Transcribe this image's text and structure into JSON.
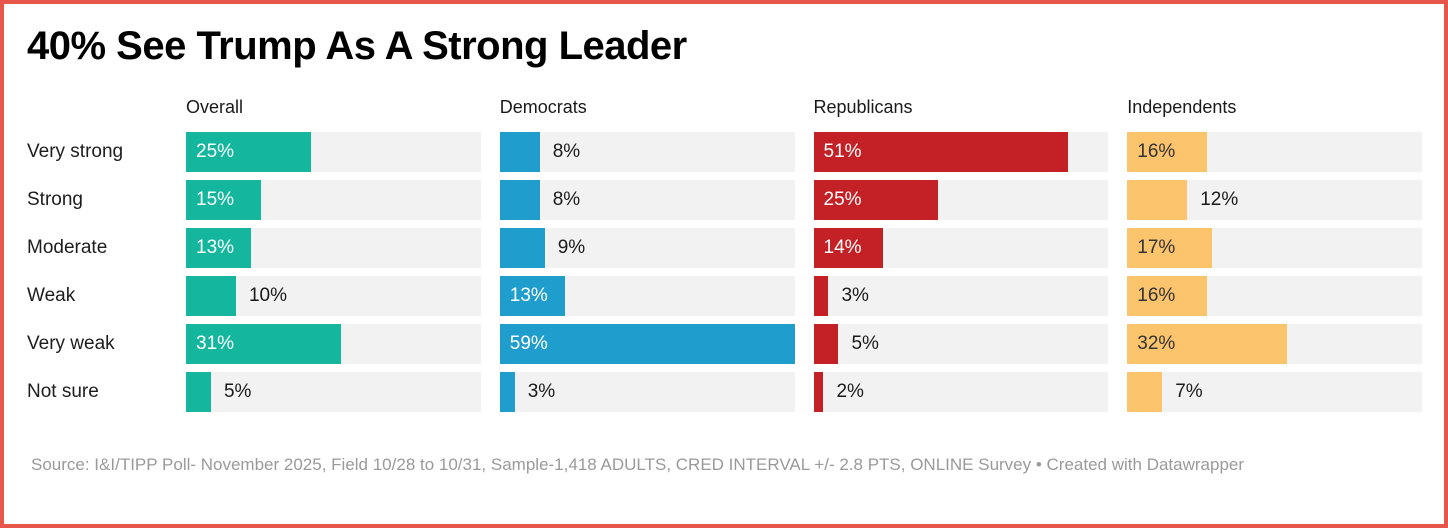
{
  "title": "40% See Trump As A Strong Leader",
  "frame": {
    "border_color": "#e7564b",
    "background": "#ffffff",
    "track_color": "#f2f2f2"
  },
  "chart_data": {
    "type": "bar",
    "orientation": "horizontal",
    "title": "40% See Trump As A Strong Leader",
    "categories": [
      "Very strong",
      "Strong",
      "Moderate",
      "Weak",
      "Very weak",
      "Not sure"
    ],
    "series": [
      {
        "name": "Overall",
        "color": "#14b79e",
        "inside_label_color": "#ffffff",
        "values": [
          25,
          15,
          13,
          10,
          31,
          5
        ]
      },
      {
        "name": "Democrats",
        "color": "#1f9ecd",
        "inside_label_color": "#ffffff",
        "values": [
          8,
          8,
          9,
          13,
          59,
          3
        ]
      },
      {
        "name": "Republicans",
        "color": "#c42127",
        "inside_label_color": "#ffffff",
        "values": [
          51,
          25,
          14,
          3,
          5,
          2
        ]
      },
      {
        "name": "Independents",
        "color": "#fbc46d",
        "inside_label_color": "#333333",
        "values": [
          16,
          12,
          17,
          16,
          32,
          7
        ]
      }
    ],
    "value_suffix": "%",
    "outside_label_color": "#1a1a1a",
    "inside_label_min_value": 13,
    "xmax": 59,
    "grid": false,
    "legend_position": "none"
  },
  "footer": {
    "source": "Source: I&I/TIPP Poll- November 2025, Field 10/28 to 10/31, Sample-1,418 ADULTS, CRED INTERVAL +/- 2.8 PTS, ONLINE Survey • Created with Datawrapper"
  }
}
